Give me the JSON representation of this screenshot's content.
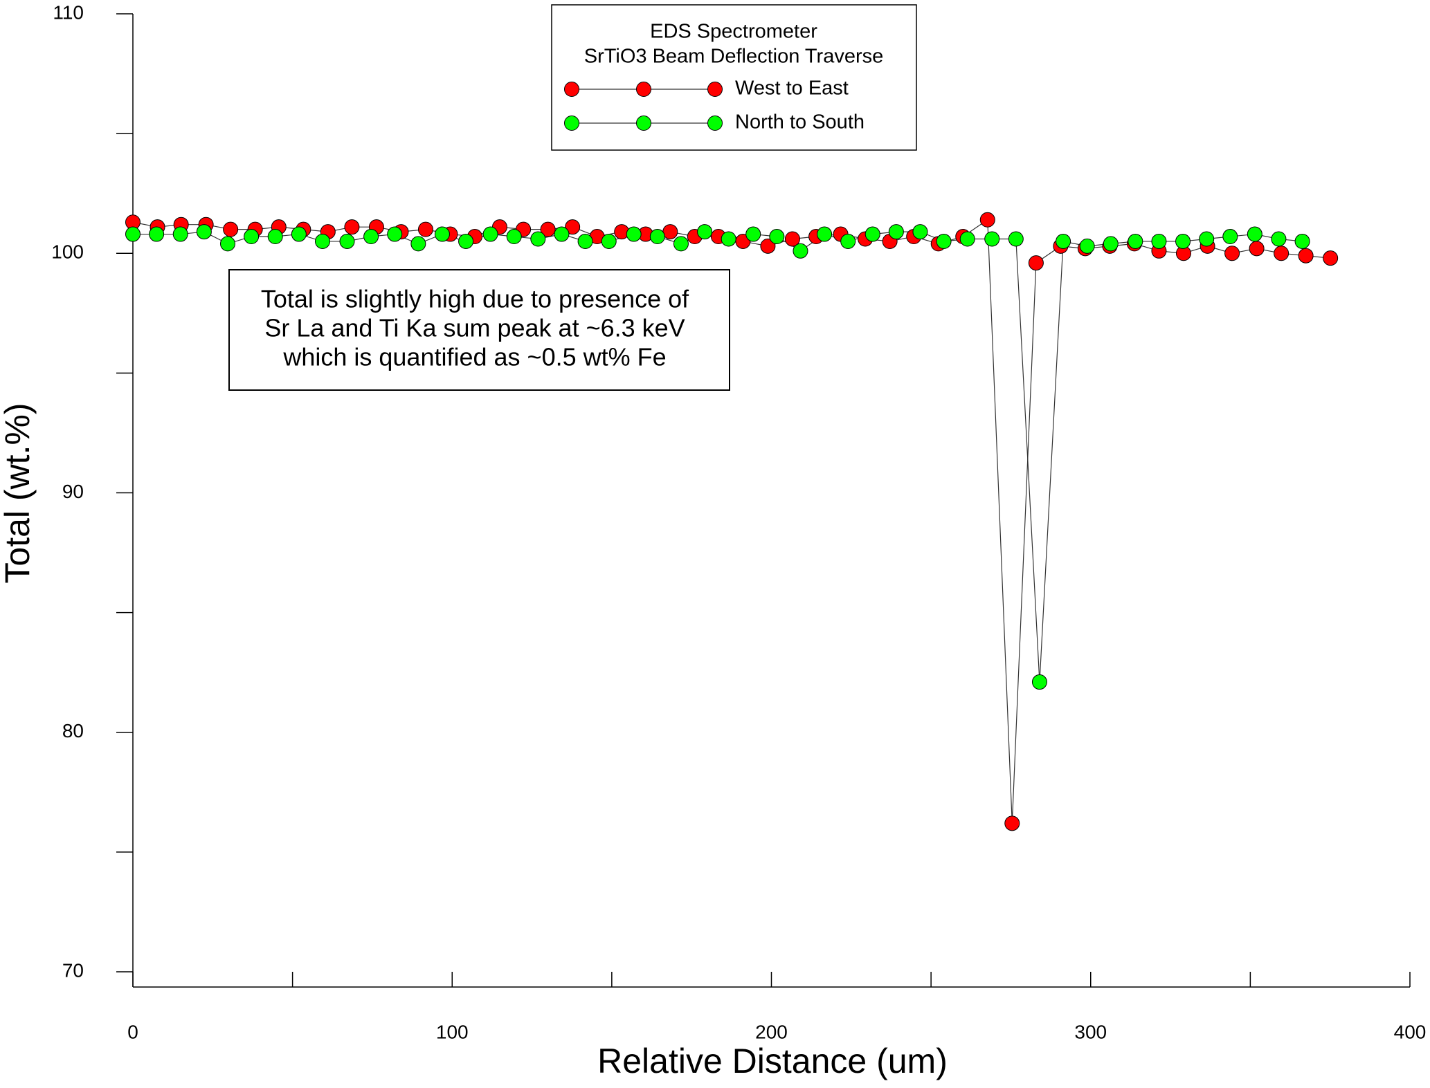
{
  "chart_data": {
    "type": "line",
    "xlabel": "Relative Distance (um)",
    "ylabel": "Total (wt.%)",
    "legend_title": [
      "EDS Spectrometer",
      "SrTiO3 Beam Deflection Traverse"
    ],
    "annotation": [
      "Total is slightly high due to presence of",
      "Sr La and Ti Ka sum peak at ~6.3 keV",
      "which is quantified as ~0.5 wt% Fe"
    ],
    "xlim": [
      0,
      400
    ],
    "xticks": [
      0,
      100,
      200,
      300,
      400
    ],
    "xminorticks": [
      50,
      150,
      250,
      350
    ],
    "ylim": [
      70,
      110
    ],
    "yticks": [
      70,
      80,
      90,
      100,
      110
    ],
    "yminorticks": [
      75,
      85,
      95,
      105
    ],
    "series": [
      {
        "name": "West to East",
        "color": "#ff0000",
        "x": [
          0,
          7.7,
          15.1,
          22.9,
          30.6,
          38.3,
          45.7,
          53.4,
          61.1,
          68.6,
          76.3,
          84,
          91.7,
          99.4,
          107.1,
          114.9,
          122.3,
          130,
          137.7,
          145.4,
          153.1,
          160.6,
          168.3,
          176,
          183.4,
          191.1,
          198.9,
          206.6,
          214,
          221.7,
          229.4,
          237.1,
          244.6,
          252.3,
          260,
          267.7,
          275.4,
          282.9,
          290.6,
          298.3,
          306,
          313.7,
          321.4,
          329.1,
          336.6,
          344.3,
          352,
          359.7,
          367.4,
          375.1
        ],
        "values": [
          101.3,
          101.1,
          101.2,
          101.2,
          101.0,
          101.0,
          101.1,
          101.0,
          100.9,
          101.1,
          101.1,
          100.9,
          101.0,
          100.8,
          100.7,
          101.1,
          101.0,
          101.0,
          101.1,
          100.7,
          100.9,
          100.8,
          100.9,
          100.7,
          100.7,
          100.5,
          100.3,
          100.6,
          100.7,
          100.8,
          100.6,
          100.5,
          100.7,
          100.4,
          100.7,
          101.4,
          76.2,
          99.6,
          100.3,
          100.2,
          100.3,
          100.4,
          100.1,
          100.0,
          100.3,
          100.0,
          100.2,
          100.0,
          99.9,
          99.8
        ]
      },
      {
        "name": "North to South",
        "color": "#00ff00",
        "x": [
          0,
          7.4,
          14.9,
          22.3,
          29.7,
          37.1,
          44.6,
          52,
          59.4,
          67.1,
          74.6,
          82,
          89.4,
          96.9,
          104.3,
          112,
          119.4,
          126.9,
          134.3,
          141.7,
          149.1,
          156.9,
          164.3,
          171.7,
          179.1,
          186.6,
          194.3,
          201.7,
          209.1,
          216.6,
          224,
          231.7,
          239.1,
          246.6,
          254,
          261.4,
          269.1,
          276.6,
          284,
          291.4,
          298.9,
          306.3,
          314,
          321.4,
          328.9,
          336.3,
          343.7,
          351.4,
          358.9,
          366.3
        ],
        "values": [
          100.8,
          100.8,
          100.8,
          100.9,
          100.4,
          100.7,
          100.7,
          100.8,
          100.5,
          100.5,
          100.7,
          100.8,
          100.4,
          100.8,
          100.5,
          100.8,
          100.7,
          100.6,
          100.8,
          100.5,
          100.5,
          100.8,
          100.7,
          100.4,
          100.9,
          100.6,
          100.8,
          100.7,
          100.1,
          100.8,
          100.5,
          100.8,
          100.9,
          100.9,
          100.5,
          100.6,
          100.6,
          100.6,
          82.1,
          100.5,
          100.3,
          100.4,
          100.5,
          100.5,
          100.5,
          100.6,
          100.7,
          100.8,
          100.6,
          100.5
        ]
      }
    ]
  }
}
